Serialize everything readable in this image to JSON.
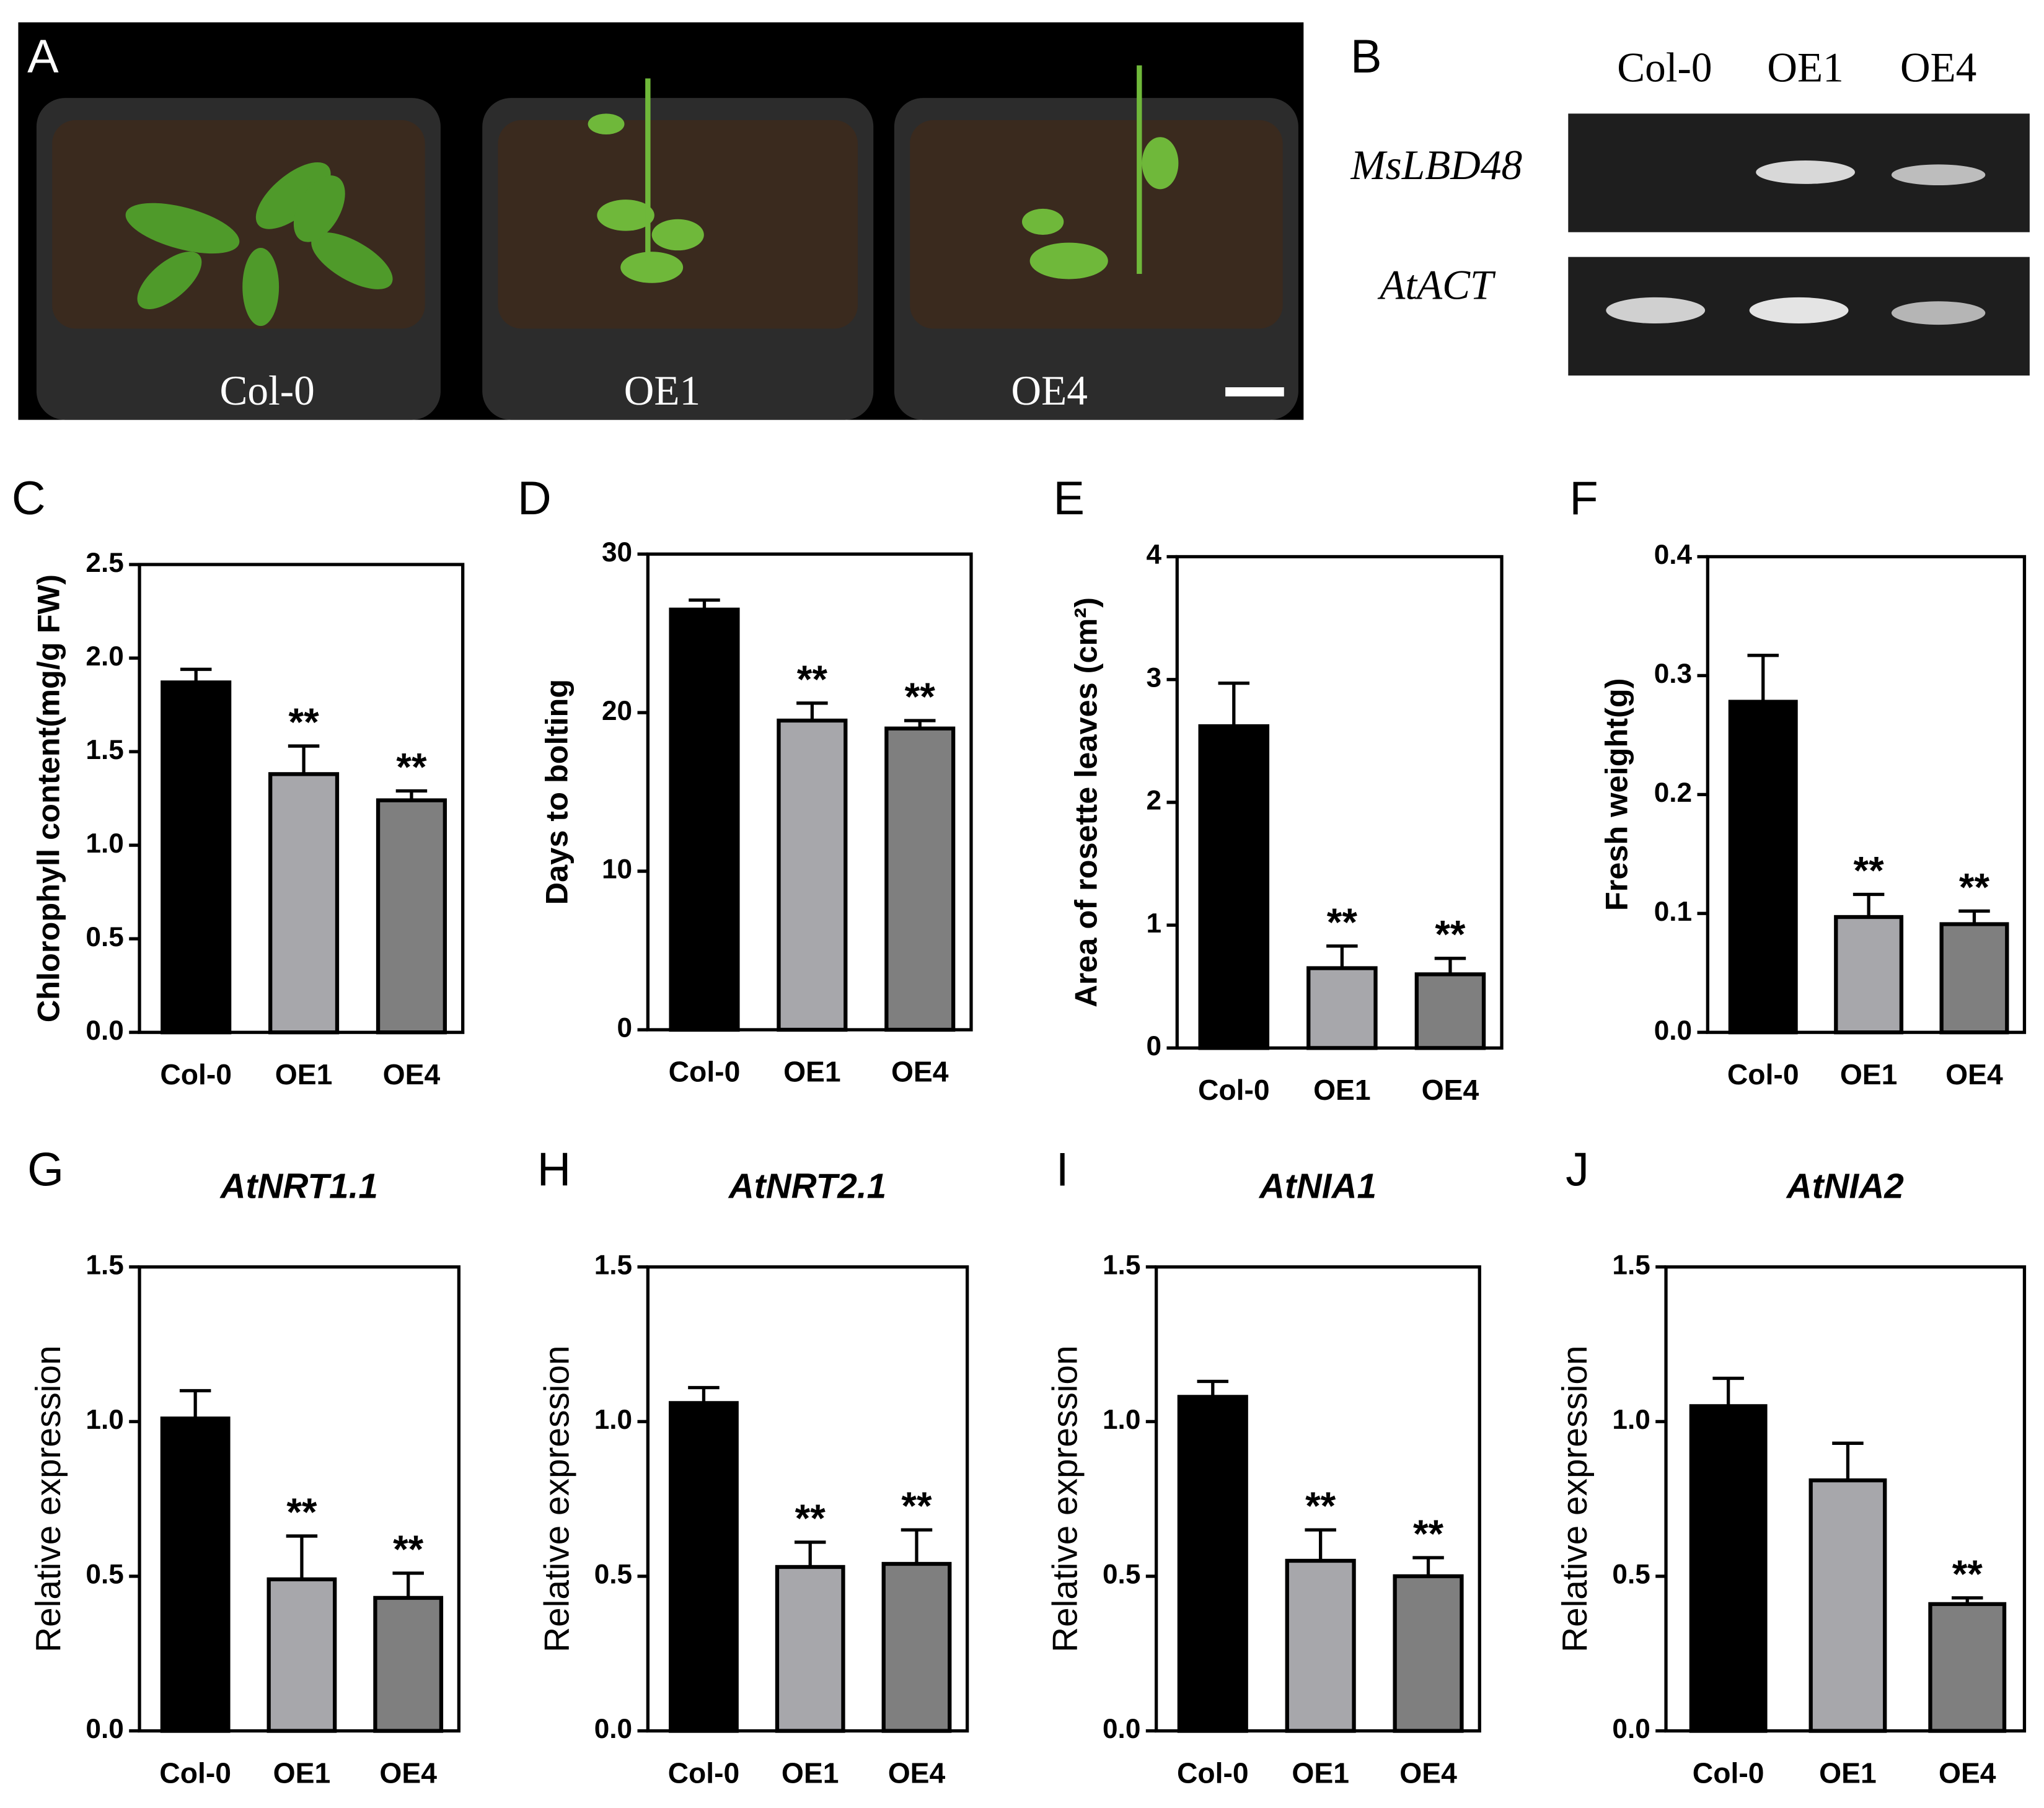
{
  "figure": {
    "panel_a": {
      "letter": "A",
      "labels": [
        "Col-0",
        "OE1",
        "OE4"
      ]
    },
    "panel_b": {
      "letter": "B",
      "lanes": [
        "Col-0",
        "OE1",
        "OE4"
      ],
      "genes": [
        "MsLBD48",
        "AtACT"
      ]
    }
  },
  "chart_data": [
    {
      "type": "bar",
      "panel": "C",
      "y_label": "Chlorophyll content(mg/g FW)",
      "categories": [
        "Col-0",
        "OE1",
        "OE4"
      ],
      "values": [
        1.87,
        1.38,
        1.24
      ],
      "errors": [
        0.07,
        0.15,
        0.05
      ],
      "annotations": [
        null,
        "**",
        "**"
      ],
      "colors": [
        "#000000",
        "#a7a7ab",
        "#7f7f7f"
      ],
      "ylim": [
        0,
        2.5
      ],
      "yticks": [
        {
          "value": 0,
          "label": "0.0"
        },
        0.5,
        {
          "value": 1,
          "label": "1.0"
        },
        1.5,
        {
          "value": 2,
          "label": "2.0"
        },
        2.5
      ]
    },
    {
      "type": "bar",
      "panel": "D",
      "y_label": "Days to bolting",
      "categories": [
        "Col-0",
        "OE1",
        "OE4"
      ],
      "values": [
        26.5,
        19.5,
        19.0
      ],
      "errors": [
        0.6,
        1.1,
        0.5
      ],
      "annotations": [
        null,
        "**",
        "**"
      ],
      "colors": [
        "#000000",
        "#a7a7ab",
        "#7f7f7f"
      ],
      "ylim": [
        0,
        30
      ],
      "yticks": [
        0,
        10,
        20,
        30
      ]
    },
    {
      "type": "bar",
      "panel": "E",
      "y_label": "Area of rosette leaves (cm²)",
      "categories": [
        "Col-0",
        "OE1",
        "OE4"
      ],
      "values": [
        2.62,
        0.65,
        0.6
      ],
      "errors": [
        0.35,
        0.18,
        0.13
      ],
      "annotations": [
        null,
        "**",
        "**"
      ],
      "colors": [
        "#000000",
        "#a7a7ab",
        "#7f7f7f"
      ],
      "ylim": [
        0,
        4
      ],
      "yticks": [
        0,
        1,
        2,
        3,
        4
      ]
    },
    {
      "type": "bar",
      "panel": "F",
      "y_label": "Fresh weight(g)",
      "categories": [
        "Col-0",
        "OE1",
        "OE4"
      ],
      "values": [
        0.278,
        0.097,
        0.091
      ],
      "errors": [
        0.039,
        0.019,
        0.011
      ],
      "annotations": [
        null,
        "**",
        "**"
      ],
      "colors": [
        "#000000",
        "#a7a7ab",
        "#7f7f7f"
      ],
      "ylim": [
        0,
        0.4
      ],
      "yticks": [
        {
          "value": 0,
          "label": "0.0"
        },
        0.1,
        0.2,
        0.3,
        0.4
      ]
    },
    {
      "type": "bar",
      "panel": "G",
      "title": "AtNRT1.1",
      "y_label": "Relative expression",
      "categories": [
        "Col-0",
        "OE1",
        "OE4"
      ],
      "values": [
        1.01,
        0.49,
        0.43
      ],
      "errors": [
        0.09,
        0.14,
        0.08
      ],
      "annotations": [
        null,
        "**",
        "**"
      ],
      "colors": [
        "#000000",
        "#a7a7ab",
        "#7f7f7f"
      ],
      "ylim": [
        0,
        1.5
      ],
      "yticks": [
        {
          "value": 0,
          "label": "0.0"
        },
        0.5,
        {
          "value": 1,
          "label": "1.0"
        },
        1.5
      ]
    },
    {
      "type": "bar",
      "panel": "H",
      "title": "AtNRT2.1",
      "y_label": "Relative expression",
      "categories": [
        "Col-0",
        "OE1",
        "OE4"
      ],
      "values": [
        1.06,
        0.53,
        0.54
      ],
      "errors": [
        0.05,
        0.08,
        0.11
      ],
      "annotations": [
        null,
        "**",
        "**"
      ],
      "colors": [
        "#000000",
        "#a7a7ab",
        "#7f7f7f"
      ],
      "ylim": [
        0,
        1.5
      ],
      "yticks": [
        {
          "value": 0,
          "label": "0.0"
        },
        0.5,
        {
          "value": 1,
          "label": "1.0"
        },
        1.5
      ]
    },
    {
      "type": "bar",
      "panel": "I",
      "title": "AtNIA1",
      "y_label": "Relative expression",
      "categories": [
        "Col-0",
        "OE1",
        "OE4"
      ],
      "values": [
        1.08,
        0.55,
        0.5
      ],
      "errors": [
        0.05,
        0.1,
        0.06
      ],
      "annotations": [
        null,
        "**",
        "**"
      ],
      "colors": [
        "#000000",
        "#a7a7ab",
        "#7f7f7f"
      ],
      "ylim": [
        0,
        1.5
      ],
      "yticks": [
        {
          "value": 0,
          "label": "0.0"
        },
        0.5,
        {
          "value": 1,
          "label": "1.0"
        },
        1.5
      ]
    },
    {
      "type": "bar",
      "panel": "J",
      "title": "AtNIA2",
      "y_label": "Relative expression",
      "categories": [
        "Col-0",
        "OE1",
        "OE4"
      ],
      "values": [
        1.05,
        0.81,
        0.41
      ],
      "errors": [
        0.09,
        0.12,
        0.02
      ],
      "annotations": [
        null,
        null,
        "**"
      ],
      "colors": [
        "#000000",
        "#a7a7ab",
        "#7f7f7f"
      ],
      "ylim": [
        0,
        1.5
      ],
      "yticks": [
        {
          "value": 0,
          "label": "0.0"
        },
        0.5,
        {
          "value": 1,
          "label": "1.0"
        },
        1.5
      ]
    }
  ]
}
